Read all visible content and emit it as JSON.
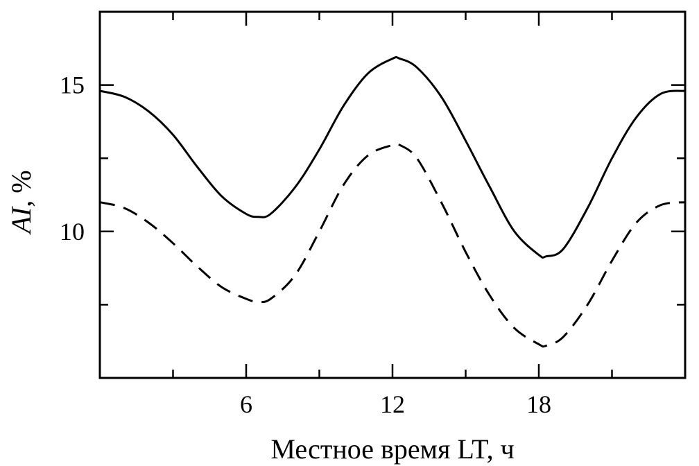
{
  "chart_data": {
    "type": "line",
    "xlabel": "Местное время LT,  ч",
    "ylabel_var": "AI",
    "ylabel_unit": ",  %",
    "xlim": [
      0,
      24
    ],
    "ylim": [
      5,
      17.5
    ],
    "x_ticks": [
      {
        "value": 6,
        "label": "6"
      },
      {
        "value": 12,
        "label": "12"
      },
      {
        "value": 18,
        "label": "18"
      }
    ],
    "x_minor_ticks": [
      3,
      9,
      15,
      21
    ],
    "y_ticks": [
      {
        "value": 10,
        "label": "10"
      },
      {
        "value": 15,
        "label": "15"
      }
    ],
    "y_minor_ticks": [
      7.5,
      12.5
    ],
    "grid": false,
    "series": [
      {
        "style": "solid",
        "color": "#000000",
        "x": [
          0,
          1,
          2,
          3,
          4,
          5,
          6,
          6.5,
          7,
          8,
          9,
          10,
          11,
          12,
          12.3,
          13,
          14,
          15,
          16,
          17,
          18,
          18.3,
          19,
          20,
          21,
          22,
          23,
          24
        ],
        "y": [
          14.8,
          14.6,
          14.1,
          13.3,
          12.2,
          11.2,
          10.6,
          10.5,
          10.6,
          11.5,
          12.8,
          14.3,
          15.4,
          15.9,
          15.9,
          15.6,
          14.6,
          13.1,
          11.5,
          10.0,
          9.2,
          9.15,
          9.4,
          10.8,
          12.5,
          13.9,
          14.7,
          14.8
        ]
      },
      {
        "style": "dashed",
        "color": "#000000",
        "x": [
          0,
          1,
          2,
          3,
          4,
          5,
          6,
          6.5,
          7,
          8,
          9,
          10,
          11,
          12,
          12.3,
          13,
          14,
          15,
          16,
          17,
          18,
          18.3,
          19,
          20,
          21,
          22,
          23,
          24
        ],
        "y": [
          11.0,
          10.8,
          10.3,
          9.6,
          8.8,
          8.1,
          7.7,
          7.6,
          7.7,
          8.5,
          10.0,
          11.6,
          12.6,
          12.95,
          12.95,
          12.5,
          11.0,
          9.3,
          7.8,
          6.7,
          6.15,
          6.1,
          6.4,
          7.5,
          9.0,
          10.3,
          10.9,
          11.0
        ]
      }
    ]
  }
}
